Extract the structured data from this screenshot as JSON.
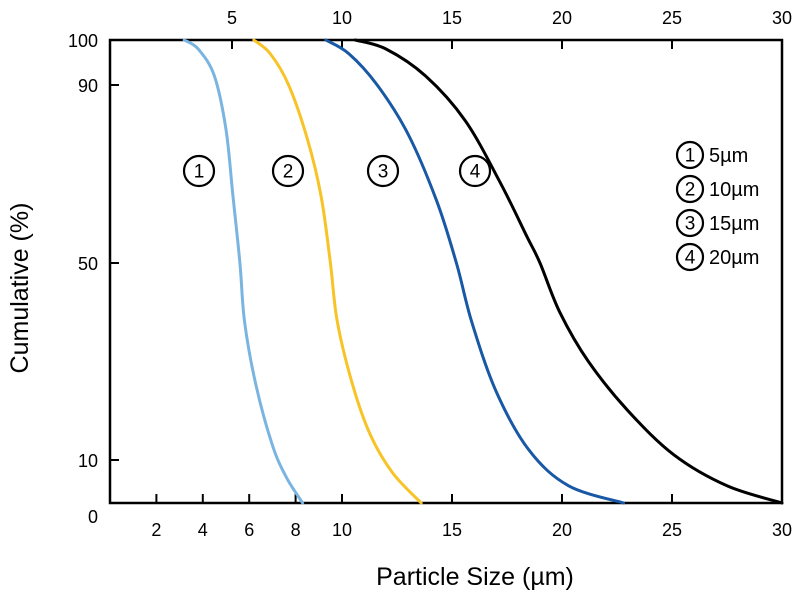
{
  "chart_data": {
    "type": "line",
    "title": "",
    "xlabel": "Particle Size (µm)",
    "ylabel": "Cumulative (%)",
    "x_bottom_ticks": [
      2,
      4,
      6,
      8,
      10,
      15,
      20,
      25,
      30
    ],
    "x_bottom_tick_labels": [
      "2",
      "4",
      "6",
      "8",
      "10",
      "15",
      "20",
      "25",
      "30"
    ],
    "x_top_ticks": [
      5,
      10,
      15,
      20,
      25,
      30
    ],
    "x_top_tick_labels": [
      "5",
      "10",
      "15",
      "20",
      "25",
      "30"
    ],
    "y_ticks": [
      0,
      10,
      50,
      90,
      100
    ],
    "y_tick_labels": [
      "0",
      "10",
      "50",
      "90",
      "100"
    ],
    "xlim": [
      0,
      30
    ],
    "ylim": [
      0,
      100
    ],
    "series": [
      {
        "name": "5µm",
        "marker": "1",
        "color": "#7ab4e0",
        "points": [
          [
            3.2,
            100
          ],
          [
            3.8,
            98
          ],
          [
            4.5,
            92
          ],
          [
            5.0,
            80
          ],
          [
            5.3,
            65
          ],
          [
            5.6,
            50
          ],
          [
            5.8,
            38
          ],
          [
            6.3,
            25
          ],
          [
            7.0,
            13
          ],
          [
            7.6,
            6
          ],
          [
            8.3,
            0
          ]
        ]
      },
      {
        "name": "10µm",
        "marker": "2",
        "color": "#f7c326",
        "points": [
          [
            6.2,
            100
          ],
          [
            6.9,
            97
          ],
          [
            7.7,
            90
          ],
          [
            8.5,
            78
          ],
          [
            9.1,
            65
          ],
          [
            9.5,
            50
          ],
          [
            9.8,
            38
          ],
          [
            10.5,
            25
          ],
          [
            11.3,
            15
          ],
          [
            12.3,
            7
          ],
          [
            13.6,
            0
          ]
        ]
      },
      {
        "name": "15µm",
        "marker": "3",
        "color": "#1858a5",
        "points": [
          [
            9.3,
            100
          ],
          [
            10.3,
            97
          ],
          [
            11.6,
            90
          ],
          [
            13.0,
            79
          ],
          [
            14.3,
            64
          ],
          [
            15.2,
            50
          ],
          [
            15.9,
            38
          ],
          [
            17.0,
            24
          ],
          [
            18.5,
            12
          ],
          [
            20.3,
            4
          ],
          [
            22.8,
            0
          ]
        ]
      },
      {
        "name": "20µm",
        "marker": "4",
        "color": "#000000",
        "points": [
          [
            10.6,
            100
          ],
          [
            12.0,
            98
          ],
          [
            13.8,
            92
          ],
          [
            15.6,
            82
          ],
          [
            17.2,
            68
          ],
          [
            18.4,
            56
          ],
          [
            19.0,
            50
          ],
          [
            19.9,
            40
          ],
          [
            21.2,
            30
          ],
          [
            23.0,
            20
          ],
          [
            25.1,
            11
          ],
          [
            27.5,
            4
          ],
          [
            30.0,
            0
          ]
        ]
      }
    ],
    "legend": {
      "position": "top-right",
      "entries": [
        {
          "marker": "1",
          "label": "5µm"
        },
        {
          "marker": "2",
          "label": "10µm"
        },
        {
          "marker": "3",
          "label": "15µm"
        },
        {
          "marker": "4",
          "label": "20µm"
        }
      ]
    },
    "curve_markers": [
      "1",
      "2",
      "3",
      "4"
    ]
  }
}
